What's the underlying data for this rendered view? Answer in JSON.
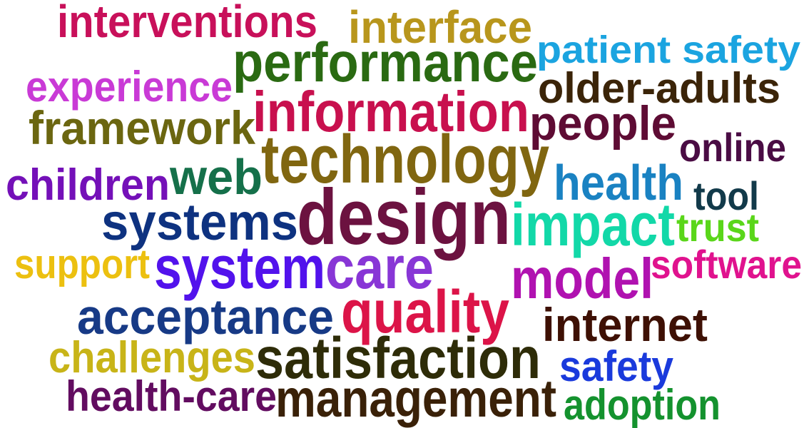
{
  "words": [
    {
      "text": "interventions",
      "color": "#c8105a"
    },
    {
      "text": "interface",
      "color": "#b8961c"
    },
    {
      "text": "patient safety",
      "color": "#1ba4e0"
    },
    {
      "text": "performance",
      "color": "#2a6a12"
    },
    {
      "text": "experience",
      "color": "#c93ad6"
    },
    {
      "text": "older-adults",
      "color": "#3b2408"
    },
    {
      "text": "information",
      "color": "#c8104e"
    },
    {
      "text": "framework",
      "color": "#6b6610"
    },
    {
      "text": "people",
      "color": "#5e0c34"
    },
    {
      "text": "online",
      "color": "#4a0c44"
    },
    {
      "text": "technology",
      "color": "#806610"
    },
    {
      "text": "children",
      "color": "#7410b8"
    },
    {
      "text": "web",
      "color": "#15704a"
    },
    {
      "text": "health",
      "color": "#1a82c2"
    },
    {
      "text": "tool",
      "color": "#123a4a"
    },
    {
      "text": "design",
      "color": "#6c1240"
    },
    {
      "text": "systems",
      "color": "#0e3280"
    },
    {
      "text": "impact",
      "color": "#12d8a8"
    },
    {
      "text": "trust",
      "color": "#5ad61a"
    },
    {
      "text": "support",
      "color": "#ecc010"
    },
    {
      "text": "system",
      "color": "#5212ec"
    },
    {
      "text": "care",
      "color": "#8836d6"
    },
    {
      "text": "model",
      "color": "#b012b0"
    },
    {
      "text": "software",
      "color": "#e0128e"
    },
    {
      "text": "acceptance",
      "color": "#173a86"
    },
    {
      "text": "quality",
      "color": "#dc1448"
    },
    {
      "text": "internet",
      "color": "#3e1004"
    },
    {
      "text": "challenges",
      "color": "#c8b418"
    },
    {
      "text": "satisfaction",
      "color": "#2e2c08"
    },
    {
      "text": "safety",
      "color": "#1a3adc"
    },
    {
      "text": "health-care",
      "color": "#620c60"
    },
    {
      "text": "management",
      "color": "#3a2108"
    },
    {
      "text": "adoption",
      "color": "#14922e"
    }
  ]
}
